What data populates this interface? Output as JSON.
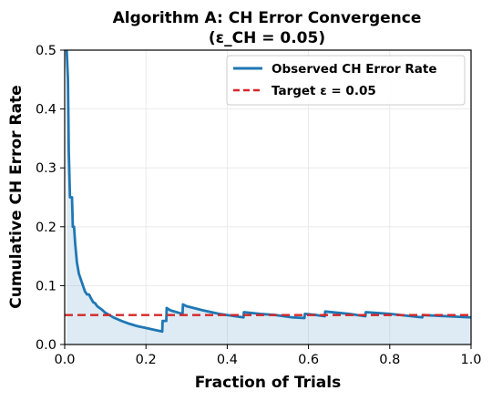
{
  "chart_data": {
    "type": "line",
    "title_line1": "Algorithm A: CH Error Convergence",
    "title_line2": "(ε_CH = 0.05)",
    "xlabel": "Fraction of Trials",
    "ylabel": "Cumulative CH Error Rate",
    "xlim": [
      0.0,
      1.0
    ],
    "ylim": [
      0.0,
      0.5
    ],
    "xticks": [
      "0.0",
      "0.2",
      "0.4",
      "0.6",
      "0.8",
      "1.0"
    ],
    "yticks": [
      "0.0",
      "0.1",
      "0.2",
      "0.3",
      "0.4",
      "0.5"
    ],
    "grid": true,
    "legend_position": "top-right",
    "series": [
      {
        "name": "Observed CH Error Rate",
        "style": "solid",
        "color": "#1f77b4",
        "fill": true,
        "x": [
          0.005,
          0.008,
          0.01,
          0.013,
          0.015,
          0.018,
          0.02,
          0.023,
          0.026,
          0.03,
          0.035,
          0.04,
          0.045,
          0.05,
          0.055,
          0.06,
          0.065,
          0.07,
          0.075,
          0.08,
          0.09,
          0.1,
          0.11,
          0.12,
          0.14,
          0.16,
          0.18,
          0.2,
          0.22,
          0.24,
          0.241,
          0.25,
          0.251,
          0.26,
          0.29,
          0.291,
          0.3,
          0.34,
          0.38,
          0.42,
          0.44,
          0.441,
          0.48,
          0.52,
          0.56,
          0.59,
          0.591,
          0.62,
          0.64,
          0.641,
          0.7,
          0.74,
          0.741,
          0.8,
          0.88,
          0.881,
          1.0
        ],
        "y": [
          0.5,
          0.45,
          0.33,
          0.25,
          0.25,
          0.25,
          0.2,
          0.2,
          0.17,
          0.14,
          0.12,
          0.11,
          0.1,
          0.09,
          0.085,
          0.085,
          0.078,
          0.072,
          0.07,
          0.065,
          0.06,
          0.054,
          0.05,
          0.046,
          0.04,
          0.035,
          0.031,
          0.028,
          0.025,
          0.022,
          0.04,
          0.04,
          0.062,
          0.058,
          0.052,
          0.068,
          0.065,
          0.058,
          0.052,
          0.048,
          0.046,
          0.055,
          0.052,
          0.05,
          0.046,
          0.045,
          0.052,
          0.05,
          0.048,
          0.056,
          0.052,
          0.048,
          0.055,
          0.052,
          0.046,
          0.05,
          0.046
        ]
      },
      {
        "name": "Target ε = 0.05",
        "style": "dashed",
        "color": "#d62728",
        "x": [
          0.0,
          1.0
        ],
        "y": [
          0.05,
          0.05
        ]
      }
    ]
  }
}
